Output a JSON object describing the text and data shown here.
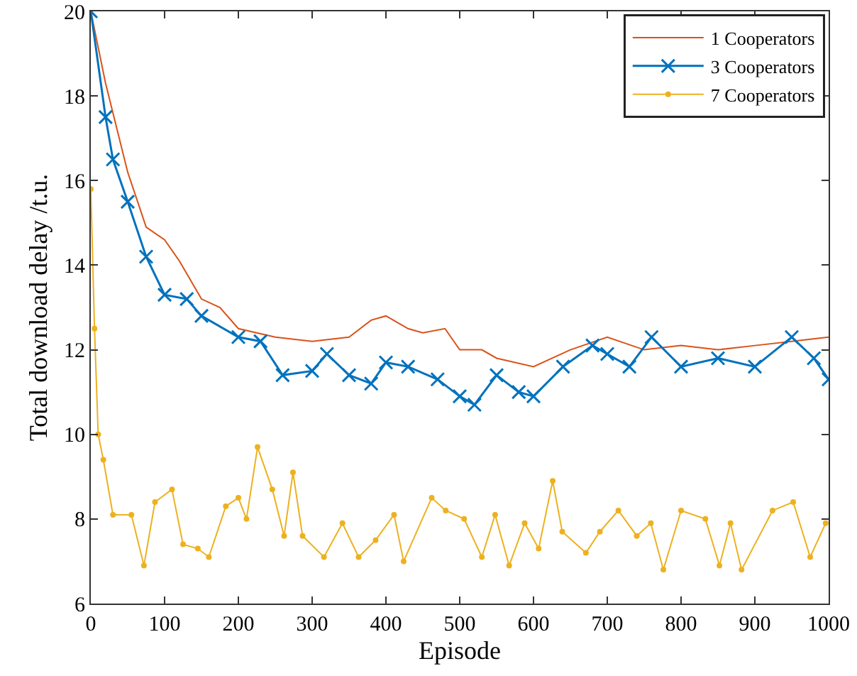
{
  "chart_data": {
    "type": "line",
    "xlabel": "Episode",
    "ylabel": "Total download delay /t.u.",
    "xlim": [
      0,
      1000
    ],
    "ylim": [
      6,
      20
    ],
    "xticks": [
      0,
      100,
      200,
      300,
      400,
      500,
      600,
      700,
      800,
      900,
      1000
    ],
    "yticks": [
      6,
      8,
      10,
      12,
      14,
      16,
      18,
      20
    ],
    "grid": false,
    "legend": "top right",
    "series": [
      {
        "name": "1 Cooperators",
        "color": "#d95319",
        "marker": "none",
        "x": [
          0,
          20,
          50,
          75,
          100,
          120,
          150,
          175,
          200,
          250,
          300,
          350,
          380,
          400,
          430,
          450,
          480,
          500,
          530,
          550,
          600,
          650,
          700,
          750,
          800,
          850,
          900,
          950,
          1000
        ],
        "values": [
          20,
          18.3,
          16.2,
          14.9,
          14.6,
          14.1,
          13.2,
          13.0,
          12.5,
          12.3,
          12.2,
          12.3,
          12.7,
          12.8,
          12.5,
          12.4,
          12.5,
          12.0,
          12.0,
          11.8,
          11.6,
          12.0,
          12.3,
          12.0,
          12.1,
          12.0,
          12.1,
          12.2,
          12.3
        ]
      },
      {
        "name": "3 Cooperators",
        "color": "#0072bd",
        "marker": "cross",
        "x": [
          0,
          20,
          30,
          50,
          75,
          100,
          130,
          150,
          200,
          230,
          260,
          300,
          320,
          350,
          380,
          400,
          430,
          470,
          500,
          520,
          550,
          580,
          600,
          640,
          680,
          700,
          730,
          760,
          800,
          850,
          900,
          950,
          980,
          1000
        ],
        "values": [
          20,
          17.5,
          16.5,
          15.5,
          14.2,
          13.3,
          13.2,
          12.8,
          12.3,
          12.2,
          11.4,
          11.5,
          11.9,
          11.4,
          11.2,
          11.7,
          11.6,
          11.3,
          10.9,
          10.7,
          11.4,
          11.0,
          10.9,
          11.6,
          12.1,
          11.9,
          11.6,
          12.3,
          11.6,
          11.8,
          11.6,
          12.3,
          11.8,
          11.3
        ]
      },
      {
        "name": "7 Cooperators",
        "color": "#edb120",
        "marker": "circle",
        "x": [
          0,
          5,
          10,
          17,
          30,
          55,
          72,
          87,
          110,
          125,
          145,
          160,
          183,
          200,
          211,
          226,
          246,
          262,
          274,
          287,
          316,
          341,
          363,
          386,
          411,
          424,
          462,
          481,
          506,
          530,
          548,
          567,
          588,
          607,
          626,
          639,
          671,
          690,
          715,
          740,
          759,
          776,
          800,
          833,
          852,
          867,
          882,
          924,
          952,
          975,
          996
        ],
        "values": [
          15.8,
          12.5,
          10,
          9.4,
          8.1,
          8.1,
          6.9,
          8.4,
          8.7,
          7.4,
          7.3,
          7.1,
          8.3,
          8.5,
          8.0,
          9.7,
          8.7,
          7.6,
          9.1,
          7.6,
          7.1,
          7.9,
          7.1,
          7.5,
          8.1,
          7.0,
          8.5,
          8.2,
          8.0,
          7.1,
          8.1,
          6.9,
          7.9,
          7.3,
          8.9,
          7.7,
          7.2,
          7.7,
          8.2,
          7.6,
          7.9,
          6.8,
          8.2,
          8.0,
          6.9,
          7.9,
          6.8,
          8.2,
          8.4,
          7.1,
          7.9
        ]
      }
    ]
  }
}
